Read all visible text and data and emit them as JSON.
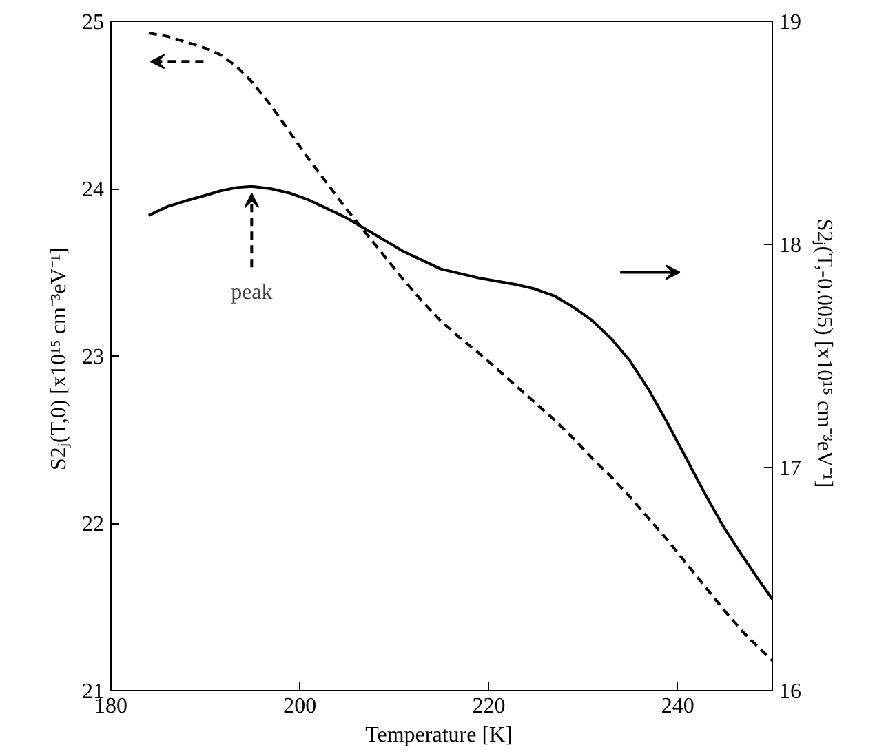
{
  "chart_data": {
    "type": "line",
    "xlabel": "Temperature  [K]",
    "ylabel": "S2ⱼ(T,0)  [x10¹⁵ cm⁻³eV⁻¹]",
    "y2label": "S2ⱼ(T,-0.005)  [x10¹⁵ cm⁻³eV⁻¹]",
    "xlim": [
      180,
      250
    ],
    "xticks": [
      180,
      200,
      220,
      240
    ],
    "ylim": [
      21,
      25
    ],
    "yticks": [
      21,
      22,
      23,
      24,
      25
    ],
    "y2lim": [
      16,
      19
    ],
    "y2ticks": [
      16,
      17,
      18,
      19
    ],
    "grid": false,
    "marker": "none",
    "series": [
      {
        "color": "#000000",
        "line_style": "dashed",
        "x": [
          184,
          186,
          188.3,
          190,
          191.6,
          193.3,
          194.9,
          196.9,
          198.9,
          200.9,
          202.9,
          204.9,
          206.9,
          208.9,
          210.9,
          212.9,
          214.9,
          216.9,
          218.9,
          220.9,
          222.9,
          224.9,
          226.9,
          228.9,
          230.9,
          232.9,
          234.9,
          236.9,
          238.9,
          240.9,
          242.9,
          244.9,
          246.9,
          248.5,
          250
        ],
        "values": [
          24.93,
          24.91,
          24.87,
          24.84,
          24.8,
          24.73,
          24.64,
          24.5,
          24.34,
          24.18,
          24.03,
          23.88,
          23.74,
          23.6,
          23.46,
          23.33,
          23.21,
          23.11,
          23.02,
          22.92,
          22.82,
          22.72,
          22.62,
          22.51,
          22.39,
          22.28,
          22.16,
          22.03,
          21.9,
          21.76,
          21.62,
          21.48,
          21.35,
          21.26,
          21.18
        ]
      },
      {
        "color": "#000000",
        "line_style": "solid",
        "axis": "y2",
        "x": [
          184,
          186,
          188.3,
          190,
          191.6,
          193.3,
          194.9,
          196.9,
          198.9,
          200.9,
          202.9,
          204.9,
          206.9,
          208.9,
          210.9,
          212.9,
          214.9,
          216.9,
          218.9,
          220.9,
          222.9,
          224.9,
          226.9,
          228.9,
          230.9,
          232.9,
          234.9,
          236.9,
          238.9,
          240.9,
          242.9,
          244.9,
          246.9,
          248.5,
          250
        ],
        "values": [
          18.13,
          18.17,
          18.2,
          18.22,
          18.24,
          18.255,
          18.26,
          18.25,
          18.23,
          18.2,
          18.16,
          18.12,
          18.07,
          18.02,
          17.97,
          17.93,
          17.89,
          17.87,
          17.85,
          17.835,
          17.82,
          17.8,
          17.77,
          17.72,
          17.66,
          17.58,
          17.48,
          17.35,
          17.2,
          17.04,
          16.88,
          16.73,
          16.6,
          16.5,
          16.41
        ]
      }
    ],
    "annotations": [
      {
        "text": "peak",
        "x": 194.9,
        "y": 24.01
      }
    ]
  }
}
